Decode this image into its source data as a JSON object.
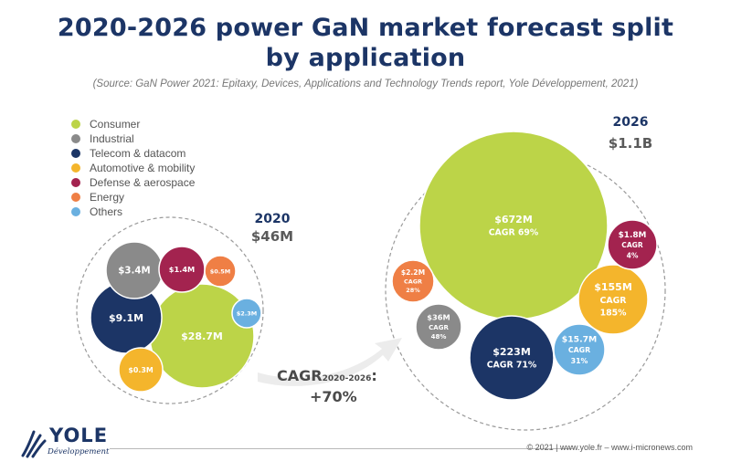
{
  "title_lines": [
    "2020-2026 power GaN market forecast split",
    "by application"
  ],
  "source": "(Source: GaN Power 2021: Epitaxy, Devices, Applications and Technology Trends report, Yole Développement, 2021)",
  "colors": {
    "Consumer": "#bcd448",
    "Industrial": "#8a8a8a",
    "Telecom & datacom": "#1c3566",
    "Automotive & mobility": "#f4b52c",
    "Defense & aerospace": "#a3234f",
    "Energy": "#ef7f45",
    "Others": "#6ab0e0"
  },
  "chart_data": {
    "type": "bubble",
    "legend": [
      "Consumer",
      "Industrial",
      "Telecom & datacom",
      "Automotive & mobility",
      "Defense & aerospace",
      "Energy",
      "Others"
    ],
    "legend_position": "top-left",
    "groups": [
      {
        "year": "2020",
        "total": "$46M",
        "bubbles": [
          {
            "category": "Consumer",
            "value": 28.7,
            "label": "$28.7M"
          },
          {
            "category": "Telecom & datacom",
            "value": 9.1,
            "label": "$9.1M"
          },
          {
            "category": "Industrial",
            "value": 3.4,
            "label": "$3.4M"
          },
          {
            "category": "Defense & aerospace",
            "value": 1.4,
            "label": "$1.4M"
          },
          {
            "category": "Energy",
            "value": 0.5,
            "label": "$0.5M"
          },
          {
            "category": "Others",
            "value": 2.3,
            "label": "$2.3M"
          },
          {
            "category": "Automotive & mobility",
            "value": 0.3,
            "label": "$0.3M"
          }
        ]
      },
      {
        "year": "2026",
        "total": "$1.1B",
        "bubbles": [
          {
            "category": "Consumer",
            "value": 672,
            "label": "$672M",
            "cagr": "CAGR 69%"
          },
          {
            "category": "Telecom & datacom",
            "value": 223,
            "label": "$223M",
            "cagr": "CAGR 71%"
          },
          {
            "category": "Automotive & mobility",
            "value": 155,
            "label": "$155M",
            "cagr": "CAGR 185%"
          },
          {
            "category": "Industrial",
            "value": 36,
            "label": "$36M",
            "cagr": "CAGR 48%"
          },
          {
            "category": "Energy",
            "value": 2.2,
            "label": "$2.2M",
            "cagr": "CAGR 28%"
          },
          {
            "category": "Defense & aerospace",
            "value": 1.8,
            "label": "$1.8M",
            "cagr": "CAGR 4%"
          },
          {
            "category": "Others",
            "value": 15.7,
            "label": "$15.7M",
            "cagr": "CAGR 31%"
          }
        ]
      }
    ],
    "overall_cagr": {
      "prefix": "CAGR",
      "subscript": "2020-2026",
      "suffix": ":",
      "value": "+70%"
    }
  },
  "logo": {
    "name": "YOLE",
    "subtitle": "Développement"
  },
  "footer": "© 2021 | www.yole.fr – www.i-micronews.com"
}
